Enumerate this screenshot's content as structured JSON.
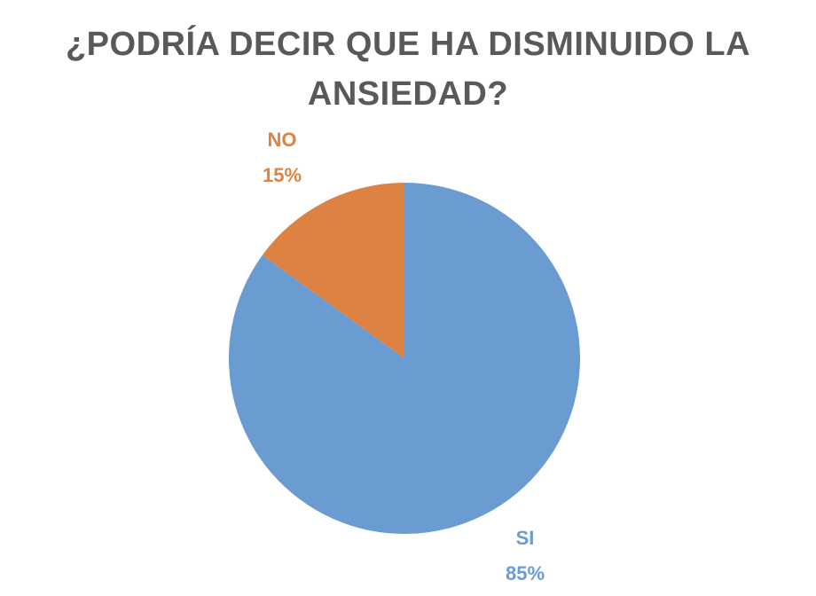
{
  "chart_data": {
    "type": "pie",
    "title": "¿PODRÍA DECIR QUE HA DISMINUIDO LA ANSIEDAD?",
    "categories": [
      "SI",
      "NO"
    ],
    "values": [
      85,
      15
    ],
    "value_labels": [
      "85%",
      "15%"
    ],
    "colors": [
      "#6a9bd1",
      "#de8244"
    ],
    "legend": "none",
    "start_angle_deg": 0,
    "direction": "clockwise"
  }
}
